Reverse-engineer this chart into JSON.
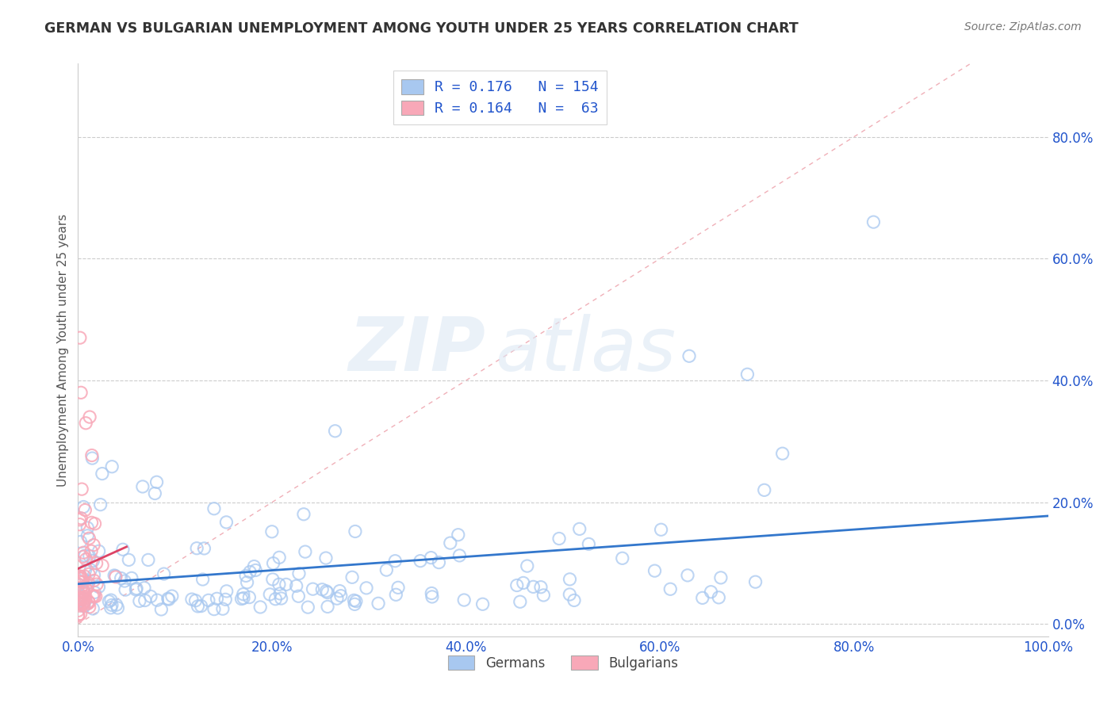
{
  "title": "GERMAN VS BULGARIAN UNEMPLOYMENT AMONG YOUTH UNDER 25 YEARS CORRELATION CHART",
  "source": "Source: ZipAtlas.com",
  "ylabel": "Unemployment Among Youth under 25 years",
  "xlim": [
    0.0,
    1.0
  ],
  "ylim": [
    -0.02,
    0.92
  ],
  "xticks": [
    0.0,
    0.2,
    0.4,
    0.6,
    0.8,
    1.0
  ],
  "xticklabels": [
    "0.0%",
    "20.0%",
    "40.0%",
    "60.0%",
    "80.0%",
    "100.0%"
  ],
  "yticks": [
    0.0,
    0.2,
    0.4,
    0.6,
    0.8
  ],
  "yticklabels": [
    "0.0%",
    "20.0%",
    "40.0%",
    "60.0%",
    "80.0%"
  ],
  "german_color": "#a8c8f0",
  "german_edge_color": "#88aadd",
  "bulgarian_color": "#f8a8b8",
  "bulgarian_edge_color": "#dd8899",
  "german_trend_color": "#3377cc",
  "bulgarian_trend_color": "#dd4466",
  "diagonal_color": "#f0b0b8",
  "watermark_zip": "ZIP",
  "watermark_atlas": "atlas",
  "legend_line1": "R = 0.176   N = 154",
  "legend_line2": "R = 0.164   N =  63",
  "legend_label_german": "Germans",
  "legend_label_bulgarian": "Bulgarians",
  "text_color": "#2255cc",
  "axis_label_color": "#555555",
  "tick_color": "#2255cc",
  "background_color": "#ffffff",
  "grid_color": "#cccccc",
  "seed": 12345,
  "n_german": 154,
  "n_bulgarian": 63
}
